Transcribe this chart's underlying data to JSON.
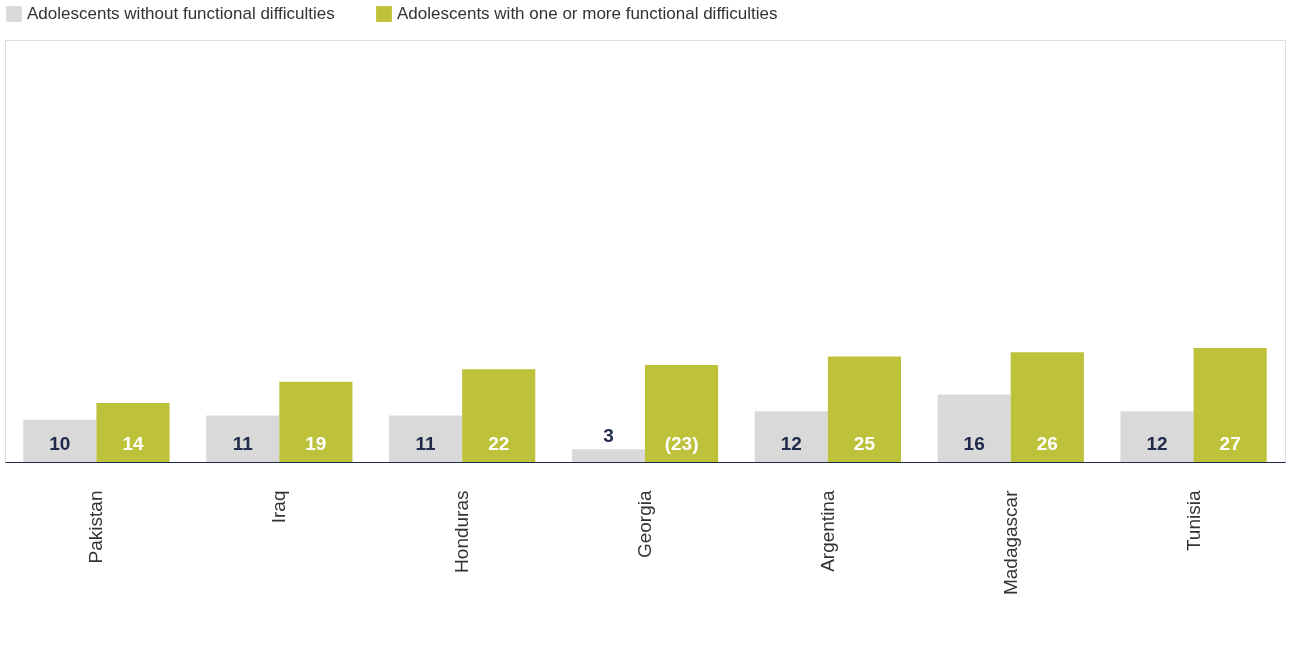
{
  "chart_data": {
    "type": "bar",
    "categories": [
      "Pakistan",
      "Iraq",
      "Honduras",
      "Georgia",
      "Argentina",
      "Madagascar",
      "Tunisia"
    ],
    "series": [
      {
        "name": "Adolescents without functional difficulties",
        "color": "#d9d9d9",
        "values": [
          10,
          11,
          11,
          3,
          12,
          16,
          12
        ],
        "value_labels": [
          "10",
          "11",
          "11",
          "3",
          "12",
          "16",
          "12"
        ]
      },
      {
        "name": "Adolescents with one or more functional difficulties",
        "color": "#bdc23a",
        "values": [
          14,
          19,
          22,
          23,
          25,
          26,
          27
        ],
        "value_labels": [
          "14",
          "19",
          "22",
          "(23)",
          "25",
          "26",
          "27"
        ]
      }
    ],
    "ylim": [
      0,
      100
    ],
    "tick_labels": "x",
    "legend": "top",
    "grid": false
  }
}
